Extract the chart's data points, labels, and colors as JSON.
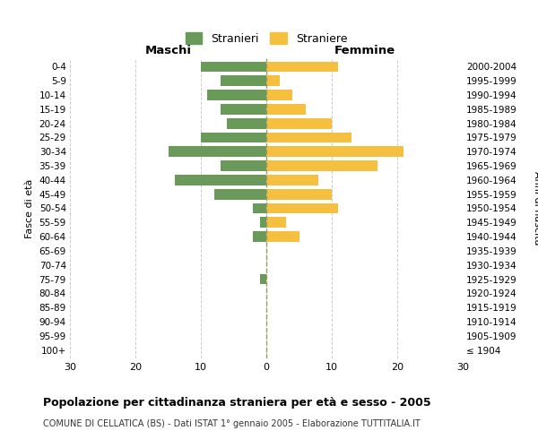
{
  "age_groups": [
    "100+",
    "95-99",
    "90-94",
    "85-89",
    "80-84",
    "75-79",
    "70-74",
    "65-69",
    "60-64",
    "55-59",
    "50-54",
    "45-49",
    "40-44",
    "35-39",
    "30-34",
    "25-29",
    "20-24",
    "15-19",
    "10-14",
    "5-9",
    "0-4"
  ],
  "birth_years": [
    "≤ 1904",
    "1905-1909",
    "1910-1914",
    "1915-1919",
    "1920-1924",
    "1925-1929",
    "1930-1934",
    "1935-1939",
    "1940-1944",
    "1945-1949",
    "1950-1954",
    "1955-1959",
    "1960-1964",
    "1965-1969",
    "1970-1974",
    "1975-1979",
    "1980-1984",
    "1985-1989",
    "1990-1994",
    "1995-1999",
    "2000-2004"
  ],
  "males": [
    0,
    0,
    0,
    0,
    0,
    1,
    0,
    0,
    2,
    1,
    2,
    8,
    14,
    7,
    15,
    10,
    6,
    7,
    9,
    7,
    10
  ],
  "females": [
    0,
    0,
    0,
    0,
    0,
    0,
    0,
    0,
    5,
    3,
    11,
    10,
    8,
    17,
    21,
    13,
    10,
    6,
    4,
    2,
    11
  ],
  "male_color": "#6a9a5a",
  "female_color": "#f5c040",
  "grid_color": "#cccccc",
  "center_line_color": "#999966",
  "title": "Popolazione per cittadinanza straniera per età e sesso - 2005",
  "subtitle": "COMUNE DI CELLATICA (BS) - Dati ISTAT 1° gennaio 2005 - Elaborazione TUTTITALIA.IT",
  "left_header": "Maschi",
  "right_header": "Femmine",
  "ylabel": "Fasce di età",
  "ylabel_right": "Anni di nascita",
  "legend_male": "Stranieri",
  "legend_female": "Straniere",
  "xlim": 30,
  "bar_height": 0.75
}
